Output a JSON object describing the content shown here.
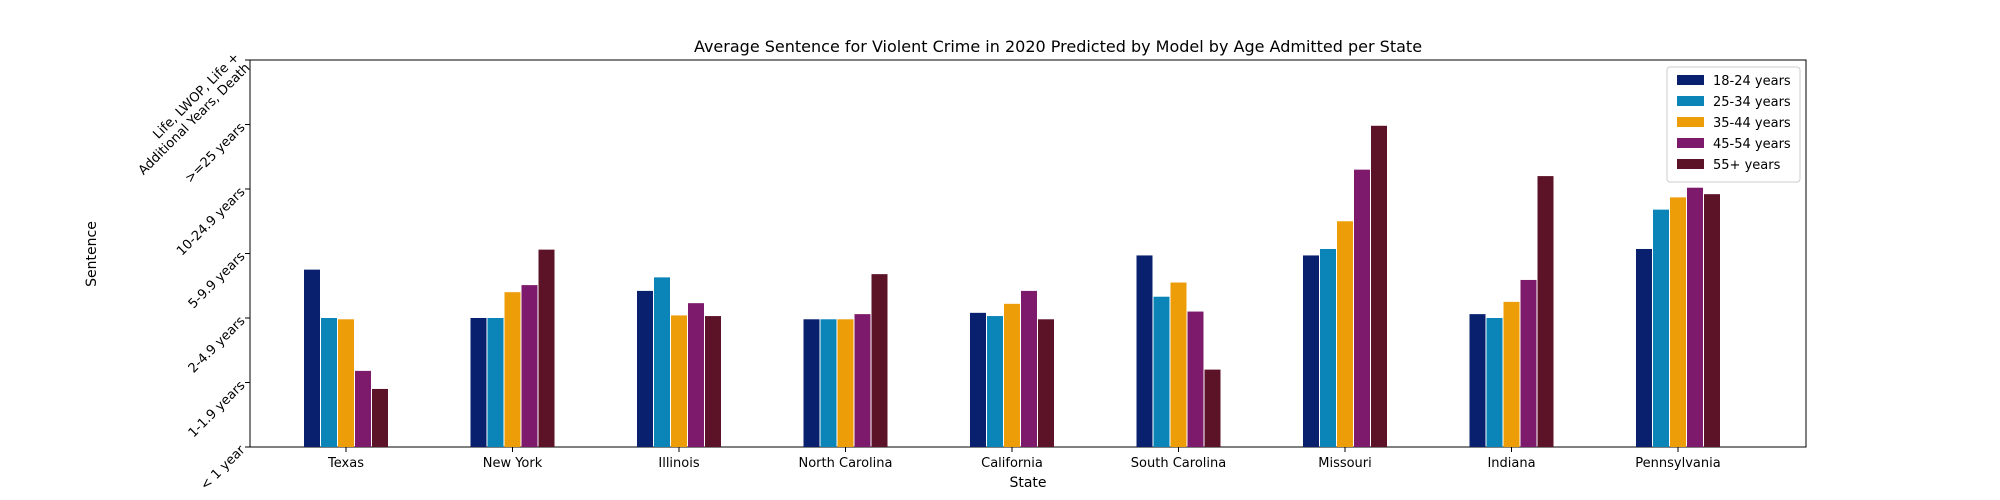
{
  "chart_data": {
    "type": "bar",
    "title": "Average Sentence for Violent Crime in 2020 Predicted by Model by Age Admitted per State",
    "xlabel": "State",
    "ylabel": "Sentence",
    "categories": [
      "Texas",
      "New York",
      "Illinois",
      "North Carolina",
      "California",
      "South Carolina",
      "Missouri",
      "Indiana",
      "Pennsylvania"
    ],
    "y_tick_labels": [
      "< 1 year",
      "1-1.9 years",
      "2-4.9 years",
      "5-9.9 years",
      "10-24.9 years",
      ">=25 years",
      "Life, LWOP, Life + Additional Years, Death"
    ],
    "y_tick_label_lines": [
      [
        "< 1 year"
      ],
      [
        "1-1.9 years"
      ],
      [
        "2-4.9 years"
      ],
      [
        "5-9.9 years"
      ],
      [
        "10-24.9 years"
      ],
      [
        ">=25 years"
      ],
      [
        "Life, LWOP, Life +",
        "Additional Years, Death"
      ]
    ],
    "ylim": [
      0,
      6
    ],
    "grid": false,
    "legend_position": "top-right",
    "series": [
      {
        "name": "18-24 years",
        "color": "#08206e",
        "values": [
          2.75,
          2.0,
          2.42,
          1.98,
          2.08,
          2.97,
          2.97,
          2.06,
          3.07
        ]
      },
      {
        "name": "25-34 years",
        "color": "#0b84b8",
        "values": [
          2.0,
          2.0,
          2.63,
          1.98,
          2.03,
          2.33,
          3.07,
          2.0,
          3.68
        ]
      },
      {
        "name": "35-44 years",
        "color": "#ec9d08",
        "values": [
          1.98,
          2.4,
          2.04,
          1.98,
          2.22,
          2.55,
          3.5,
          2.25,
          3.87
        ]
      },
      {
        "name": "45-54 years",
        "color": "#7d1a6b",
        "values": [
          1.18,
          2.51,
          2.23,
          2.06,
          2.42,
          2.1,
          4.3,
          2.59,
          4.02
        ]
      },
      {
        "name": "55+ years",
        "color": "#5c1227",
        "values": [
          0.9,
          3.06,
          2.03,
          2.68,
          1.98,
          1.2,
          4.98,
          4.2,
          3.92
        ]
      }
    ]
  }
}
